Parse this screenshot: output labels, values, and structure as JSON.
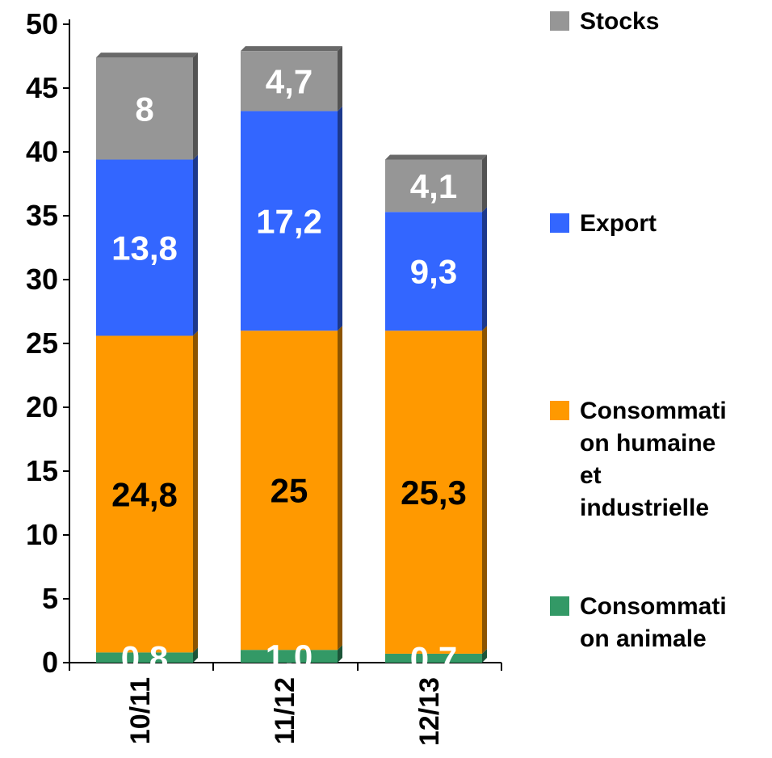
{
  "chart_data": {
    "type": "bar",
    "stacked": true,
    "title": "",
    "xlabel": "",
    "ylabel": "",
    "ylim": [
      0,
      50
    ],
    "yticks": [
      0,
      5,
      10,
      15,
      20,
      25,
      30,
      35,
      40,
      45,
      50
    ],
    "categories": [
      "10/11",
      "11/12",
      "12/13"
    ],
    "series": [
      {
        "name": "Consommation animale",
        "legend_lines": [
          "Consommati",
          "on animale"
        ],
        "color": "#339966",
        "label_color": "#ffffff",
        "values": [
          0.8,
          1.0,
          0.7
        ],
        "labels": [
          "0,8",
          "1,0",
          "0,7"
        ]
      },
      {
        "name": "Consommation humaine et industrielle",
        "legend_lines": [
          "Consommati",
          "on humaine",
          "et",
          "industrielle"
        ],
        "color": "#ff9900",
        "label_color": "#000000",
        "values": [
          24.8,
          25,
          25.3
        ],
        "labels": [
          "24,8",
          "25",
          "25,3"
        ]
      },
      {
        "name": "Export",
        "legend_lines": [
          "Export"
        ],
        "color": "#3366ff",
        "label_color": "#ffffff",
        "values": [
          13.8,
          17.2,
          9.3
        ],
        "labels": [
          "13,8",
          "17,2",
          "9,3"
        ]
      },
      {
        "name": "Stocks",
        "legend_lines": [
          "Stocks"
        ],
        "color": "#969696",
        "label_color": "#ffffff",
        "values": [
          8,
          4.7,
          4.1
        ],
        "labels": [
          "8",
          "4,7",
          "4,1"
        ]
      }
    ],
    "legend_position": "right",
    "grid": false
  }
}
